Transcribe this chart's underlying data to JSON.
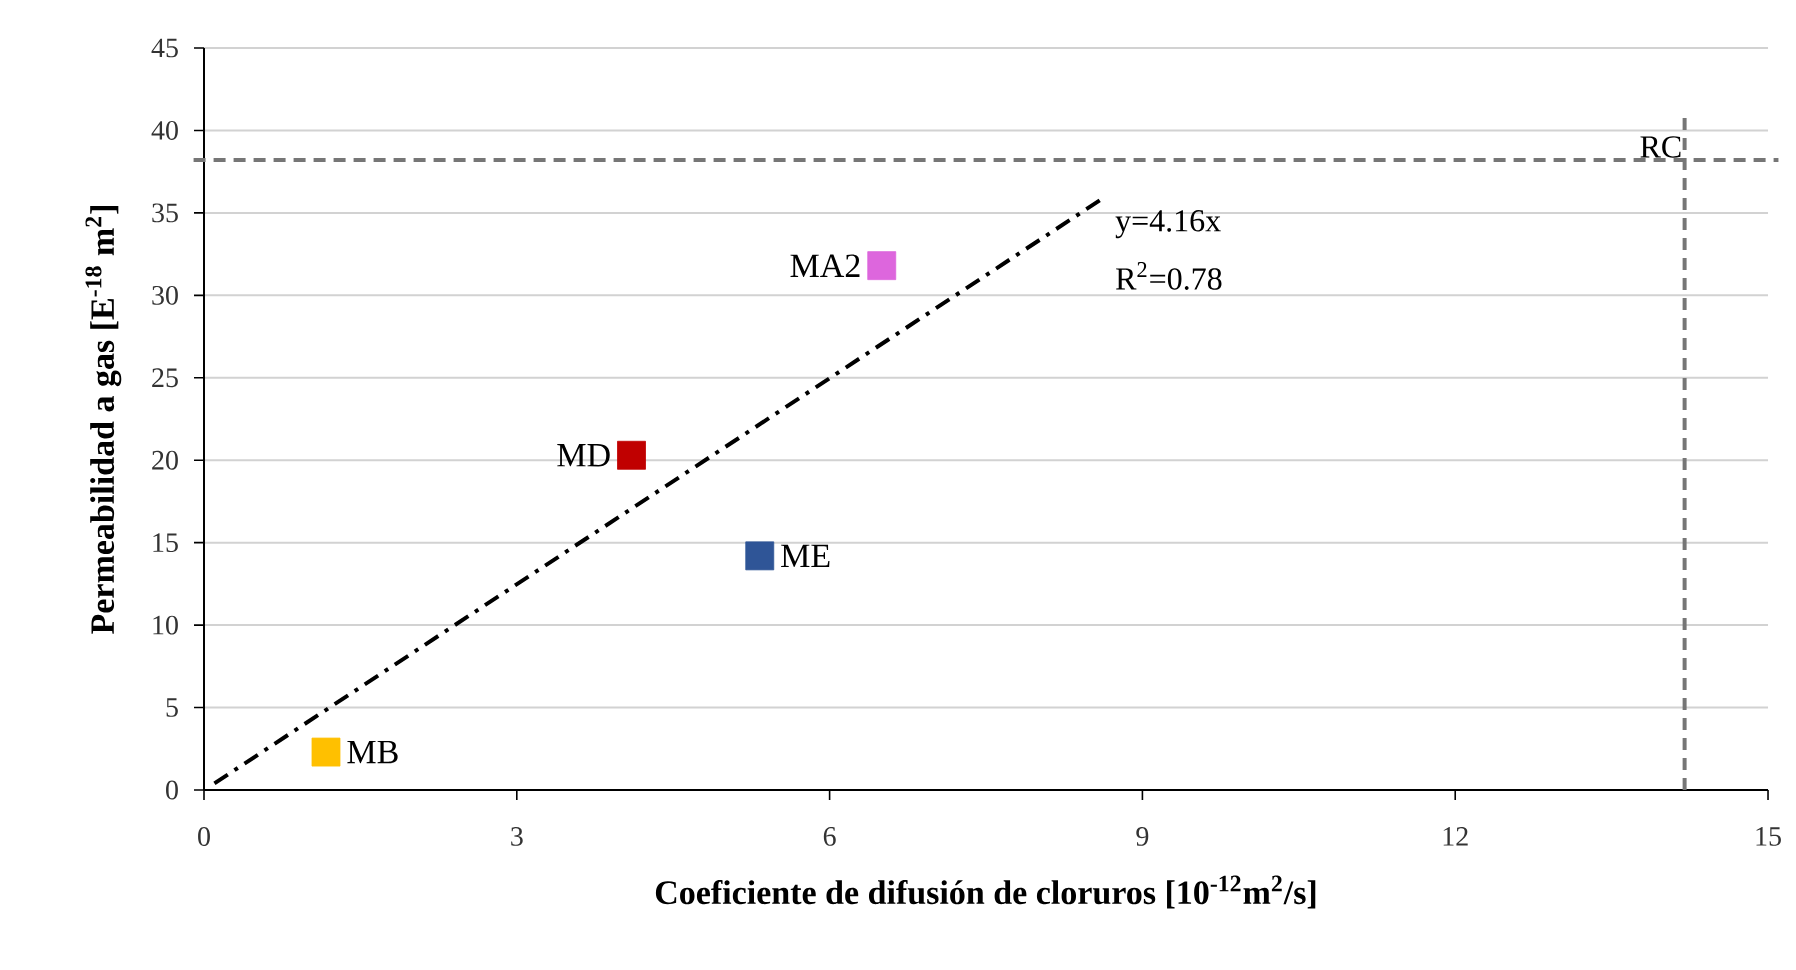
{
  "chart_data": {
    "type": "scatter",
    "xlabel": "Coeficiente de difusión de cloruros [10$^{-12}$m$^{2}$/s]",
    "ylabel": "Permeabilidad a gas [E$^{-18}$ m$^{2}$]",
    "series": [
      {
        "name": "MB",
        "color": "#ffc000",
        "marker": "square",
        "x": [
          1.17
        ],
        "values": [
          2.3
        ]
      },
      {
        "name": "MD",
        "color": "#c00000",
        "marker": "square",
        "x": [
          4.1
        ],
        "values": [
          20.3
        ]
      },
      {
        "name": "ME",
        "color": "#2f5597",
        "marker": "square",
        "x": [
          5.33
        ],
        "values": [
          14.2
        ]
      },
      {
        "name": "MA2",
        "color": "#dd66dd",
        "marker": "square",
        "x": [
          6.5
        ],
        "values": [
          31.8
        ]
      },
      {
        "type": "line",
        "color": "#000000",
        "line_style": "dashdot",
        "marker": "none",
        "x": [
          0.1,
          8.6
        ],
        "values": [
          0.4,
          35.8
        ]
      }
    ],
    "grid": "y",
    "xlim": [
      0,
      15
    ],
    "xticks": [
      0,
      3,
      6,
      9,
      12,
      15
    ],
    "ylim": [
      0,
      45
    ],
    "yticks": [
      0,
      5,
      10,
      15,
      20,
      25,
      30,
      35,
      40,
      45
    ],
    "ref_lines": [
      {
        "axis": "y",
        "value": 38.2,
        "label": "RC",
        "color": "#767676",
        "line_style": "dashed"
      },
      {
        "axis": "x",
        "value": 14.2,
        "color": "#767676",
        "line_style": "dashed"
      }
    ],
    "annotations": [
      "y=4.16x",
      "R$^{2}$=0.78"
    ]
  }
}
